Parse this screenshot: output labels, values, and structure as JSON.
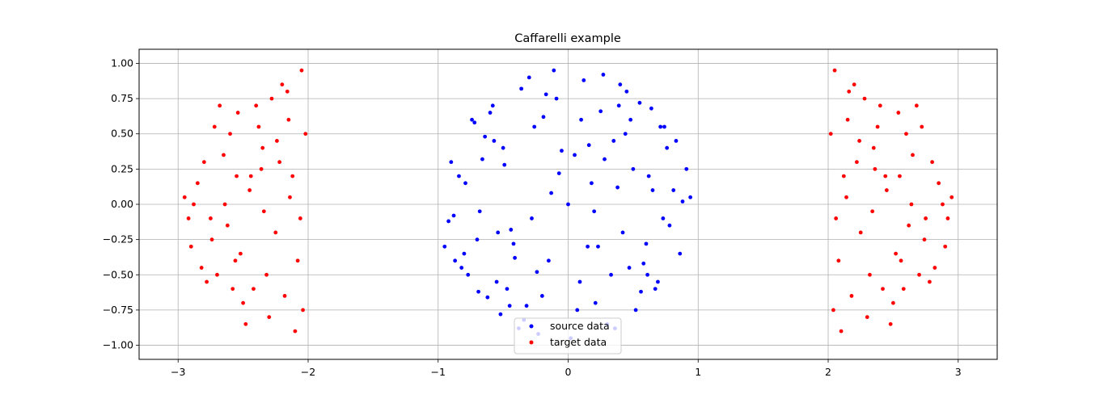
{
  "chart_data": {
    "type": "scatter",
    "title": "Caffarelli example",
    "xlabel": "",
    "ylabel": "",
    "xlim": [
      -3.3,
      3.3
    ],
    "ylim": [
      -1.1,
      1.1
    ],
    "x_ticks": [
      -3,
      -2,
      -1,
      0,
      1,
      2,
      3
    ],
    "x_tick_labels": [
      "−3",
      "−2",
      "−1",
      "0",
      "1",
      "2",
      "3"
    ],
    "y_ticks": [
      1.0,
      0.75,
      0.5,
      0.25,
      0.0,
      -0.25,
      -0.5,
      -0.75,
      -1.0
    ],
    "y_tick_labels": [
      "1.00",
      "0.75",
      "0.50",
      "0.25",
      "0.00",
      "−0.25",
      "−0.50",
      "−0.75",
      "−1.00"
    ],
    "grid": true,
    "legend_position": "lower center",
    "series": [
      {
        "name": "source data",
        "color": "#0000ff",
        "x": [
          0.0,
          0.35,
          -0.41,
          0.62,
          -0.7,
          0.81,
          -0.88,
          0.94,
          0.12,
          -0.23,
          0.48,
          -0.55,
          0.21,
          -0.09,
          0.71,
          -0.77,
          0.3,
          -0.36,
          0.55,
          -0.62,
          0.05,
          -0.15,
          0.42,
          -0.49,
          0.86,
          -0.9,
          0.67,
          -0.72,
          0.18,
          -0.28,
          0.58,
          -0.64,
          0.25,
          -0.32,
          0.76,
          -0.82,
          0.09,
          -0.19,
          0.45,
          -0.52,
          0.38,
          -0.44,
          0.15,
          -0.05,
          0.64,
          -0.69,
          0.52,
          -0.58,
          0.27,
          -0.38,
          0.78,
          -0.84,
          0.91,
          -0.95,
          0.02,
          -0.11,
          0.33,
          -0.26,
          0.6,
          -0.66,
          0.44,
          -0.47,
          0.2,
          -0.13,
          0.69,
          -0.74,
          0.83,
          -0.87,
          0.1,
          -0.2,
          0.4,
          -0.34,
          0.56,
          -0.6,
          0.28,
          -0.42,
          0.73,
          -0.79,
          0.07,
          -0.17,
          0.5,
          -0.54,
          0.36,
          -0.3,
          0.65,
          -0.68,
          0.16,
          -0.24,
          0.47,
          -0.5,
          0.88,
          -0.92,
          0.23,
          -0.07,
          0.61,
          -0.57,
          0.39,
          -0.45,
          0.74,
          -0.8
        ],
        "y": [
          0.0,
          0.45,
          -0.38,
          0.2,
          -0.25,
          0.1,
          -0.08,
          0.05,
          0.88,
          -0.92,
          0.6,
          -0.55,
          -0.7,
          0.75,
          0.55,
          -0.5,
          -0.85,
          0.82,
          0.72,
          -0.66,
          0.35,
          -0.4,
          -0.2,
          0.28,
          -0.35,
          0.3,
          -0.6,
          0.58,
          0.15,
          -0.1,
          -0.42,
          0.48,
          0.66,
          -0.72,
          0.4,
          -0.45,
          -0.55,
          0.62,
          0.8,
          -0.78,
          0.12,
          -0.18,
          -0.3,
          0.38,
          0.68,
          -0.62,
          -0.75,
          0.7,
          0.92,
          -0.88,
          -0.15,
          0.2,
          0.25,
          -0.3,
          -0.95,
          0.95,
          -0.5,
          0.55,
          -0.28,
          0.32,
          0.5,
          -0.6,
          -0.05,
          0.08,
          -0.55,
          0.6,
          0.45,
          -0.4,
          0.6,
          -0.65,
          0.85,
          -0.82,
          -0.62,
          0.65,
          0.32,
          -0.28,
          -0.1,
          0.15,
          -0.75,
          0.78,
          0.25,
          -0.2,
          -0.88,
          0.9,
          0.1,
          -0.05,
          0.42,
          -0.48,
          -0.45,
          0.4,
          0.02,
          -0.12,
          -0.3,
          0.22,
          -0.5,
          0.45,
          0.7,
          -0.72,
          0.55,
          -0.35
        ]
      },
      {
        "name": "target data",
        "color": "#ff0000",
        "x": [
          -2.05,
          -2.2,
          -2.4,
          -2.6,
          -2.8,
          -2.95,
          -2.1,
          -2.3,
          -2.5,
          -2.7,
          -2.9,
          -2.15,
          -2.35,
          -2.55,
          -2.75,
          -2.08,
          -2.25,
          -2.45,
          -2.65,
          -2.85,
          -2.12,
          -2.32,
          -2.52,
          -2.72,
          -2.02,
          -2.18,
          -2.38,
          -2.58,
          -2.78,
          -2.92,
          -2.06,
          -2.28,
          -2.48,
          -2.68,
          -2.88,
          -2.14,
          -2.34,
          -2.54,
          -2.74,
          -2.22,
          -2.42,
          -2.62,
          -2.82,
          -2.04,
          -2.24,
          -2.44,
          -2.64,
          -2.16,
          -2.36,
          -2.56,
          2.05,
          2.2,
          2.4,
          2.6,
          2.8,
          2.95,
          2.1,
          2.3,
          2.5,
          2.7,
          2.9,
          2.15,
          2.35,
          2.55,
          2.75,
          2.08,
          2.25,
          2.45,
          2.65,
          2.85,
          2.12,
          2.32,
          2.52,
          2.72,
          2.02,
          2.18,
          2.38,
          2.58,
          2.78,
          2.92,
          2.06,
          2.28,
          2.48,
          2.68,
          2.88,
          2.14,
          2.34,
          2.54,
          2.74,
          2.22,
          2.42,
          2.62,
          2.82,
          2.04,
          2.24,
          2.44,
          2.64,
          2.16,
          2.36,
          2.56
        ],
        "y": [
          0.95,
          0.85,
          0.7,
          0.5,
          0.3,
          0.05,
          -0.9,
          -0.8,
          -0.7,
          -0.5,
          -0.3,
          0.6,
          0.4,
          0.2,
          -0.1,
          -0.4,
          -0.2,
          0.1,
          0.35,
          0.15,
          0.2,
          -0.5,
          -0.35,
          0.55,
          0.5,
          -0.65,
          0.55,
          -0.6,
          -0.55,
          -0.1,
          -0.1,
          0.75,
          -0.85,
          0.7,
          0.0,
          0.05,
          -0.05,
          0.65,
          -0.25,
          0.3,
          -0.6,
          -0.15,
          -0.45,
          -0.75,
          0.45,
          0.2,
          0.0,
          0.8,
          0.25,
          -0.4,
          0.95,
          0.85,
          0.7,
          0.5,
          0.3,
          0.05,
          -0.9,
          -0.8,
          -0.7,
          -0.5,
          -0.3,
          0.6,
          0.4,
          0.2,
          -0.1,
          -0.4,
          -0.2,
          0.1,
          0.35,
          0.15,
          0.2,
          -0.5,
          -0.35,
          0.55,
          0.5,
          -0.65,
          0.55,
          -0.6,
          -0.55,
          -0.1,
          -0.1,
          0.75,
          -0.85,
          0.7,
          0.0,
          0.05,
          -0.05,
          0.65,
          -0.25,
          0.3,
          -0.6,
          -0.15,
          -0.45,
          -0.75,
          0.45,
          0.2,
          0.0,
          0.8,
          0.25,
          -0.4
        ]
      }
    ]
  }
}
